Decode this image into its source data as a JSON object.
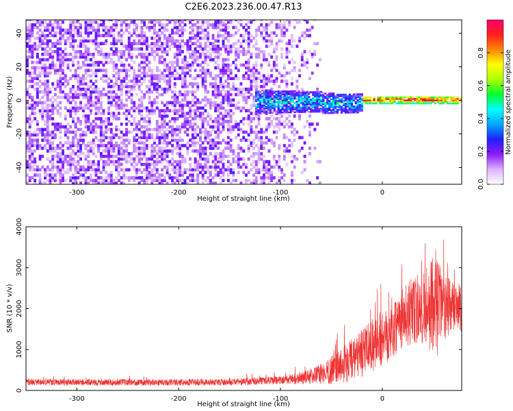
{
  "title": "C2E6.2023.236.00.47.R13",
  "colors": {
    "snr_line": "#ee3333",
    "colormap": [
      "#ffffff",
      "#d9b3ff",
      "#8c1aff",
      "#2020ff",
      "#00a8ff",
      "#00ffff",
      "#00ff30",
      "#aaff00",
      "#ffff00",
      "#ff8800",
      "#ff2020",
      "#ff0066"
    ]
  },
  "colorbar": {
    "label": "Normalized spectral amplitude",
    "ticks": [
      "0.0",
      "0.2",
      "0.4",
      "0.6",
      "0.8"
    ],
    "tick_values": [
      0.0,
      0.2,
      0.4,
      0.6,
      0.8
    ],
    "range": [
      0,
      1
    ]
  },
  "chart_data": [
    {
      "type": "heatmap",
      "xlabel": "Height of straight line (km)",
      "ylabel": "Frequency (Hz)",
      "xlim": [
        -350,
        78
      ],
      "ylim": [
        -50,
        48
      ],
      "x_ticks": [
        -300,
        -200,
        -100,
        0
      ],
      "x_tick_labels": [
        "-300",
        "-200",
        "-100",
        "0"
      ],
      "y_ticks": [
        -40,
        -20,
        0,
        20,
        40
      ],
      "y_tick_labels": [
        "-40",
        "-20",
        "0",
        "20",
        "40"
      ],
      "colormap": "rainbow",
      "description_values": {
        "noise_region_x": [
          -350,
          -60
        ],
        "signal_band_x": [
          -125,
          78
        ],
        "signal_center_hz": 0,
        "peak_amplitude": 1.0
      }
    },
    {
      "type": "line",
      "xlabel": "Height of straight line (km)",
      "ylabel": "SNR (10 * v/v)",
      "xlim": [
        -350,
        78
      ],
      "ylim": [
        0,
        4000
      ],
      "x_ticks": [
        -300,
        -200,
        -100,
        0
      ],
      "x_tick_labels": [
        "-300",
        "-200",
        "-100",
        "0"
      ],
      "y_ticks": [
        0,
        1000,
        2000,
        3000,
        4000
      ],
      "y_tick_labels": [
        "0",
        "1000",
        "2000",
        "3000",
        "4000"
      ],
      "envelope": {
        "x": [
          -350,
          -300,
          -200,
          -150,
          -100,
          -80,
          -60,
          -40,
          -20,
          0,
          20,
          40,
          55,
          60,
          78
        ],
        "median": [
          200,
          200,
          200,
          200,
          250,
          300,
          400,
          600,
          900,
          1300,
          1800,
          2000,
          2200,
          2000,
          2000
        ],
        "spread": [
          80,
          80,
          80,
          80,
          100,
          150,
          250,
          450,
          600,
          700,
          800,
          900,
          1400,
          800,
          600
        ]
      }
    }
  ]
}
